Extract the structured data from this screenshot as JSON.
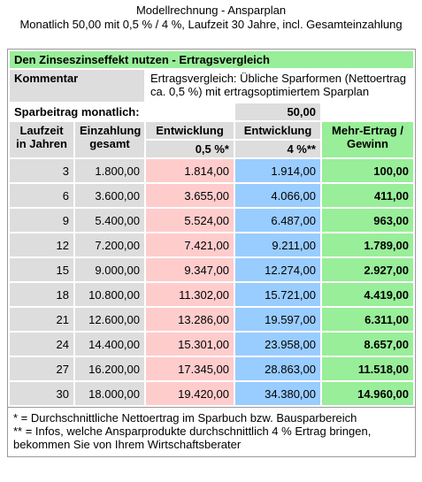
{
  "title": "Modellrechnung - Ansparplan",
  "subtitle": "Monatlich 50,00 mit 0,5 % / 4 %, Laufzeit 30 Jahre, incl. Gesamteinzahlung",
  "table": {
    "heading": "Den Zinseszinseffekt nutzen - Ertragsvergleich",
    "comment_label": "Kommentar",
    "comment": "Ertragsvergleich: Übliche Sparformen (Nettoertrag ca. 0,5 %) mit ertragsoptimiertem Sparplan",
    "rate_label": "Sparbeitrag monatlich:",
    "rate": "50,00",
    "columns": [
      "Laufzeit\nin Jahren",
      "Einzahlung\ngesamt",
      "Entwicklung",
      "Entwicklung",
      "Mehr-Ertrag /\nGewinn"
    ],
    "subcolumns": [
      "0,5 %*",
      "4 %**"
    ],
    "rows": [
      [
        3,
        "1.800,00",
        "1.814,00",
        "1.914,00",
        "100,00"
      ],
      [
        6,
        "3.600,00",
        "3.655,00",
        "4.066,00",
        "411,00"
      ],
      [
        9,
        "5.400,00",
        "5.524,00",
        "6.487,00",
        "963,00"
      ],
      [
        12,
        "7.200,00",
        "7.421,00",
        "9.211,00",
        "1.789,00"
      ],
      [
        15,
        "9.000,00",
        "9.347,00",
        "12.274,00",
        "2.927,00"
      ],
      [
        18,
        "10.800,00",
        "11.302,00",
        "15.721,00",
        "4.419,00"
      ],
      [
        21,
        "12.600,00",
        "13.286,00",
        "19.597,00",
        "6.311,00"
      ],
      [
        24,
        "14.400,00",
        "15.301,00",
        "23.958,00",
        "8.657,00"
      ],
      [
        27,
        "16.200,00",
        "17.345,00",
        "28.863,00",
        "11.518,00"
      ],
      [
        30,
        "18.000,00",
        "19.420,00",
        "34.380,00",
        "14.960,00"
      ]
    ]
  },
  "footnotes": [
    "* = Durchschnittliche Nettoertrag im Sparbuch bzw. Bausparbereich",
    "** = Infos, welche Ansparprodukte durchschnittlich 4 % Ertrag bringen, bekommen Sie von Ihrem Wirtschaftsberater"
  ]
}
